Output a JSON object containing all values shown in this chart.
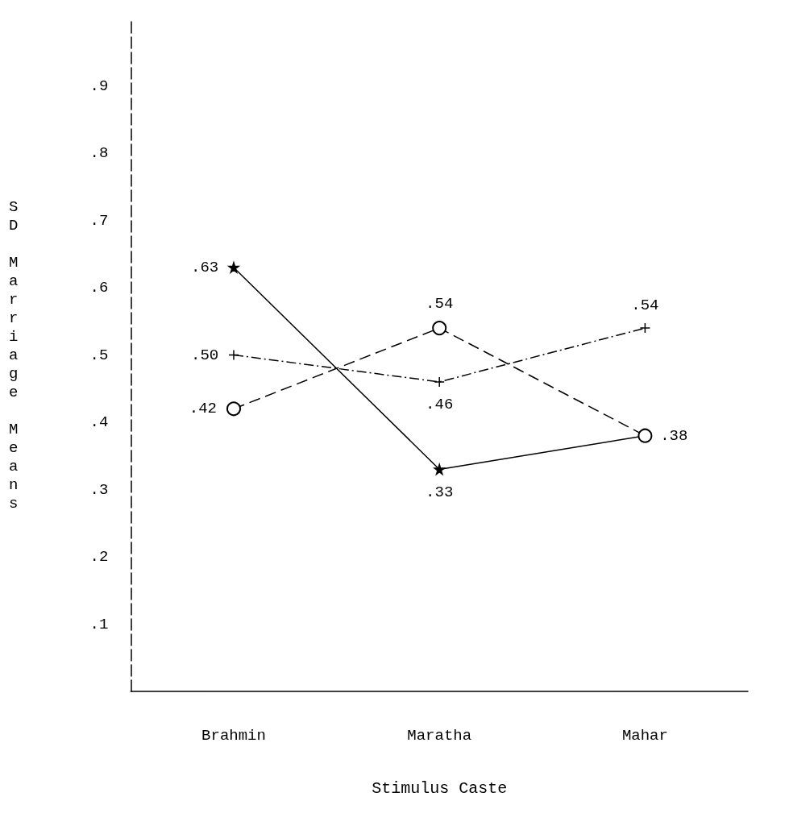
{
  "chart_data": {
    "type": "line",
    "xlabel": "Stimulus Caste",
    "ylabel": "SD Marriage Means",
    "categories": [
      "Brahmin",
      "Maratha",
      "Mahar"
    ],
    "series": [
      {
        "color": "#000000",
        "marker": "star",
        "line_style": "solid",
        "values": [
          0.63,
          0.33,
          0.38
        ],
        "value_labels": [
          ".63",
          ".33",
          ".38"
        ]
      },
      {
        "color": "#000000",
        "marker": "circle",
        "line_style": "dashed",
        "values": [
          0.42,
          0.54,
          0.38
        ],
        "value_labels": [
          ".42",
          ".54",
          null
        ]
      },
      {
        "color": "#000000",
        "marker": "cross",
        "line_style": "dotted",
        "values": [
          0.5,
          0.46,
          0.54
        ],
        "value_labels": [
          ".50",
          ".46",
          ".54"
        ]
      }
    ],
    "ylim": [
      0,
      1.0
    ],
    "yticks": [
      {
        "value": 0.1,
        "label": ".1"
      },
      {
        "value": 0.2,
        "label": ".2"
      },
      {
        "value": 0.3,
        "label": ".3"
      },
      {
        "value": 0.4,
        "label": ".4"
      },
      {
        "value": 0.5,
        "label": ".5"
      },
      {
        "value": 0.6,
        "label": ".6"
      },
      {
        "value": 0.7,
        "label": ".7"
      },
      {
        "value": 0.8,
        "label": ".8"
      },
      {
        "value": 0.9,
        "label": ".9"
      }
    ],
    "grid": false
  }
}
